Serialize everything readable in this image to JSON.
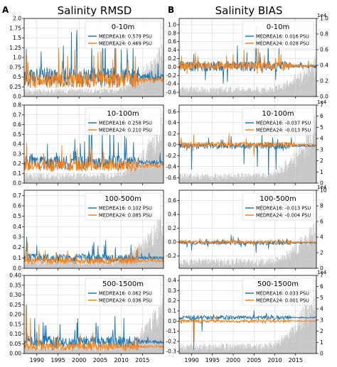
{
  "figure": {
    "left_label": "A",
    "right_label": "B",
    "left_title": "Salinity RMSD",
    "right_title": "Salinity BIAS",
    "x_ticks": [
      "1990",
      "1995",
      "2000",
      "2005",
      "2010",
      "2015"
    ],
    "colors": {
      "medrea16": "#1f77b4",
      "medrea24": "#ff7f0e",
      "count": "#c8c8c8"
    }
  },
  "chart_data": [
    {
      "type": "line",
      "panel": "A1",
      "metric": "RMSD",
      "title": "0-10m",
      "xlim": [
        1987,
        2020
      ],
      "ylim": [
        0.0,
        2.0
      ],
      "yticks": [
        "0.0",
        "0.25",
        "0.5",
        "0.75",
        "1.0",
        "1.25",
        "1.5",
        "1.75",
        "2.0"
      ],
      "series": [
        {
          "name": "MEDREA16: 0.579 PSU",
          "base": 0.5,
          "amp": 0.25,
          "spike": 1.3,
          "seed": 11,
          "peaks": [
            [
              1991.0,
              1.15
            ],
            [
              1996.3,
              1.3
            ],
            [
              1998.2,
              1.65
            ],
            [
              1999.5,
              1.7
            ],
            [
              2003.0,
              1.35
            ],
            [
              2005.6,
              1.6
            ],
            [
              2008.5,
              1.35
            ],
            [
              2010.0,
              1.2
            ],
            [
              2011.5,
              0.9
            ]
          ]
        },
        {
          "name": "MEDREA24: 0.469 PSU",
          "base": 0.42,
          "amp": 0.2,
          "spike": 0.9,
          "seed": 12,
          "peaks": [
            [
              1996.0,
              0.9
            ],
            [
              1999.0,
              1.2
            ],
            [
              2003.5,
              1.05
            ],
            [
              2005.2,
              1.15
            ],
            [
              2008.0,
              0.95
            ]
          ]
        }
      ],
      "count": {
        "base": 0.08,
        "late": 0.55,
        "seed": 13
      }
    },
    {
      "type": "line",
      "panel": "B1",
      "metric": "BIAS",
      "title": "0-10m",
      "xlim": [
        1987,
        2020
      ],
      "ylim": [
        -0.7,
        1.15
      ],
      "yticks": [
        "-0.6",
        "-0.4",
        "-0.2",
        "0.0",
        "0.2",
        "0.4",
        "0.6",
        "0.8",
        "1.0"
      ],
      "right_ylim": [
        0,
        1
      ],
      "right_yticks": [
        "0.0",
        "0.2",
        "0.4",
        "0.6",
        "0.8",
        "1.0"
      ],
      "right_scale": "1e4",
      "series": [
        {
          "name": "MEDREA16: 0.016 PSU",
          "base": 0.02,
          "amp": 0.12,
          "spike": 0.9,
          "seed": 21,
          "peaks": [
            [
              1990.5,
              0.3
            ],
            [
              2001.0,
              0.5
            ],
            [
              2005.5,
              0.95
            ],
            [
              2008.4,
              0.7
            ],
            [
              2010.2,
              -0.3
            ],
            [
              2011.0,
              0.45
            ]
          ]
        },
        {
          "name": "MEDREA24: 0.028 PSU",
          "base": 0.03,
          "amp": 0.1,
          "spike": 0.6,
          "seed": 22,
          "peaks": [
            [
              1991.5,
              0.25
            ],
            [
              2000.0,
              0.3
            ],
            [
              2006.0,
              0.55
            ],
            [
              2011.0,
              0.3
            ]
          ]
        }
      ],
      "count": {
        "base": 0.1,
        "late": 0.35,
        "seed": 23
      }
    },
    {
      "type": "line",
      "panel": "A2",
      "metric": "RMSD",
      "title": "10-100m",
      "xlim": [
        1987,
        2020
      ],
      "ylim": [
        0.0,
        0.8
      ],
      "yticks": [
        "0.0",
        "0.1",
        "0.2",
        "0.3",
        "0.4",
        "0.5",
        "0.6",
        "0.7",
        "0.8"
      ],
      "series": [
        {
          "name": "MEDREA16: 0.258 PSU",
          "base": 0.21,
          "amp": 0.07,
          "spike": 0.35,
          "seed": 31,
          "peaks": [
            [
              1992.5,
              0.4
            ],
            [
              1999.0,
              0.45
            ],
            [
              2002.4,
              0.72
            ],
            [
              2003.0,
              0.62
            ],
            [
              2005.5,
              0.5
            ],
            [
              2010.8,
              0.48
            ]
          ]
        },
        {
          "name": "MEDREA24: 0.210 PSU",
          "base": 0.18,
          "amp": 0.06,
          "spike": 0.25,
          "seed": 32,
          "peaks": [
            [
              1999.5,
              0.35
            ],
            [
              2002.5,
              0.4
            ],
            [
              2005.8,
              0.32
            ]
          ]
        }
      ],
      "count": {
        "base": 0.1,
        "late": 0.7,
        "seed": 33
      }
    },
    {
      "type": "line",
      "panel": "B2",
      "metric": "BIAS",
      "title": "10-100m",
      "xlim": [
        1987,
        2020
      ],
      "ylim": [
        -0.7,
        0.72
      ],
      "yticks": [
        "-0.6",
        "-0.4",
        "-0.2",
        "0.0",
        "0.2",
        "0.4",
        "0.6"
      ],
      "right_ylim": [
        0,
        7
      ],
      "right_yticks": [
        "0",
        "1",
        "2",
        "3",
        "4",
        "5",
        "6",
        "7"
      ],
      "right_scale": "1e4",
      "series": [
        {
          "name": "MEDREA16: -0.037 PSU",
          "base": -0.02,
          "amp": 0.06,
          "spike": 0.3,
          "seed": 41,
          "peaks": [
            [
              1990.0,
              -0.45
            ],
            [
              1999.5,
              0.15
            ],
            [
              2002.6,
              -0.35
            ],
            [
              2005.8,
              -0.4
            ],
            [
              2008.5,
              -0.55
            ],
            [
              2010.3,
              -0.45
            ]
          ]
        },
        {
          "name": "MEDREA24: -0.013 PSU",
          "base": 0.0,
          "amp": 0.05,
          "spike": 0.2,
          "seed": 42,
          "peaks": [
            [
              1990.5,
              0.18
            ],
            [
              1999.0,
              0.2
            ],
            [
              2005.0,
              -0.2
            ]
          ]
        }
      ],
      "count": {
        "base": 0.1,
        "late": 0.7,
        "seed": 43
      }
    },
    {
      "type": "line",
      "panel": "A3",
      "metric": "RMSD",
      "title": "100-500m",
      "xlim": [
        1987,
        2020
      ],
      "ylim": [
        0.0,
        0.75
      ],
      "yticks": [
        "0.0",
        "0.1",
        "0.2",
        "0.3",
        "0.4",
        "0.5",
        "0.6",
        "0.7"
      ],
      "series": [
        {
          "name": "MEDREA16: 0.102 PSU",
          "base": 0.1,
          "amp": 0.04,
          "spike": 0.18,
          "seed": 51,
          "peaks": [
            [
              1987.6,
              0.3
            ],
            [
              1990.0,
              0.22
            ],
            [
              2003.5,
              0.25
            ],
            [
              2006.0,
              0.22
            ]
          ]
        },
        {
          "name": "MEDREA24: 0.085 PSU",
          "base": 0.07,
          "amp": 0.03,
          "spike": 0.12,
          "seed": 52,
          "peaks": [
            [
              1987.8,
              0.25
            ],
            [
              1990.5,
              0.17
            ]
          ]
        }
      ],
      "count": {
        "base": 0.1,
        "late": 0.6,
        "seed": 53
      }
    },
    {
      "type": "line",
      "panel": "B3",
      "metric": "BIAS",
      "title": "100-500m",
      "xlim": [
        1987,
        2020
      ],
      "ylim": [
        -0.38,
        0.75
      ],
      "yticks": [
        "-0.2",
        "0.0",
        "0.2",
        "0.4",
        "0.6"
      ],
      "right_ylim": [
        0,
        10
      ],
      "right_yticks": [
        "0",
        "2",
        "4",
        "6",
        "8",
        "10"
      ],
      "right_scale": "1e4",
      "series": [
        {
          "name": "MEDREA16: -0.013 PSU",
          "base": -0.01,
          "amp": 0.03,
          "spike": 0.12,
          "seed": 61,
          "peaks": [
            [
              1990.0,
              -0.12
            ],
            [
              1999.5,
              0.1
            ],
            [
              2005.5,
              -0.15
            ],
            [
              2008.5,
              -0.1
            ]
          ]
        },
        {
          "name": "MEDREA24: -0.004 PSU",
          "base": 0.0,
          "amp": 0.025,
          "spike": 0.08,
          "seed": 62,
          "peaks": [
            [
              1992.0,
              0.05
            ],
            [
              2000.0,
              0.06
            ]
          ]
        }
      ],
      "count": {
        "base": 0.1,
        "late": 0.45,
        "seed": 63
      }
    },
    {
      "type": "line",
      "panel": "A4",
      "metric": "RMSD",
      "title": "500-1500m",
      "xlim": [
        1987,
        2020
      ],
      "ylim": [
        0.0,
        0.4
      ],
      "yticks": [
        "0.00",
        "0.05",
        "0.10",
        "0.15",
        "0.20",
        "0.25",
        "0.30",
        "0.35",
        "0.40"
      ],
      "series": [
        {
          "name": "MEDREA16: 0.062 PSU",
          "base": 0.06,
          "amp": 0.03,
          "spike": 0.12,
          "seed": 71,
          "peaks": [
            [
              1987.5,
              0.25
            ],
            [
              1989.5,
              0.18
            ],
            [
              1991.5,
              0.16
            ],
            [
              1999.0,
              0.12
            ],
            [
              2004.5,
              0.14
            ],
            [
              2008.0,
              0.12
            ],
            [
              2010.6,
              0.18
            ]
          ]
        },
        {
          "name": "MEDREA24: 0.036 PSU",
          "base": 0.035,
          "amp": 0.02,
          "spike": 0.08,
          "seed": 72,
          "peaks": [
            [
              1987.6,
              0.24
            ],
            [
              1988.5,
              0.18
            ],
            [
              1990.5,
              0.15
            ]
          ]
        }
      ],
      "count": {
        "base": 0.08,
        "late": 0.55,
        "seed": 73
      }
    },
    {
      "type": "line",
      "panel": "B4",
      "metric": "BIAS",
      "title": "500-1500m",
      "xlim": [
        1987,
        2020
      ],
      "ylim": [
        -0.32,
        0.45
      ],
      "yticks": [
        "-0.3",
        "-0.2",
        "-0.1",
        "0.0",
        "0.1",
        "0.2",
        "0.3",
        "0.4"
      ],
      "right_ylim": [
        0,
        7
      ],
      "right_yticks": [
        "0",
        "1",
        "2",
        "3",
        "4",
        "5",
        "6",
        "7"
      ],
      "right_scale": "1e4",
      "series": [
        {
          "name": "MEDREA16: 0.033 PSU",
          "base": 0.035,
          "amp": 0.02,
          "spike": 0.06,
          "seed": 81,
          "peaks": [
            [
              1990.5,
              -0.28
            ],
            [
              1992.5,
              -0.1
            ],
            [
              2005.0,
              0.1
            ],
            [
              2008.0,
              0.08
            ]
          ]
        },
        {
          "name": "MEDREA24: 0.001 PSU",
          "base": 0.0,
          "amp": 0.015,
          "spike": 0.05,
          "seed": 82,
          "peaks": [
            [
              1990.6,
              -0.2
            ],
            [
              1996.0,
              0.05
            ]
          ]
        }
      ],
      "count": {
        "base": 0.1,
        "late": 0.75,
        "seed": 83
      }
    }
  ]
}
